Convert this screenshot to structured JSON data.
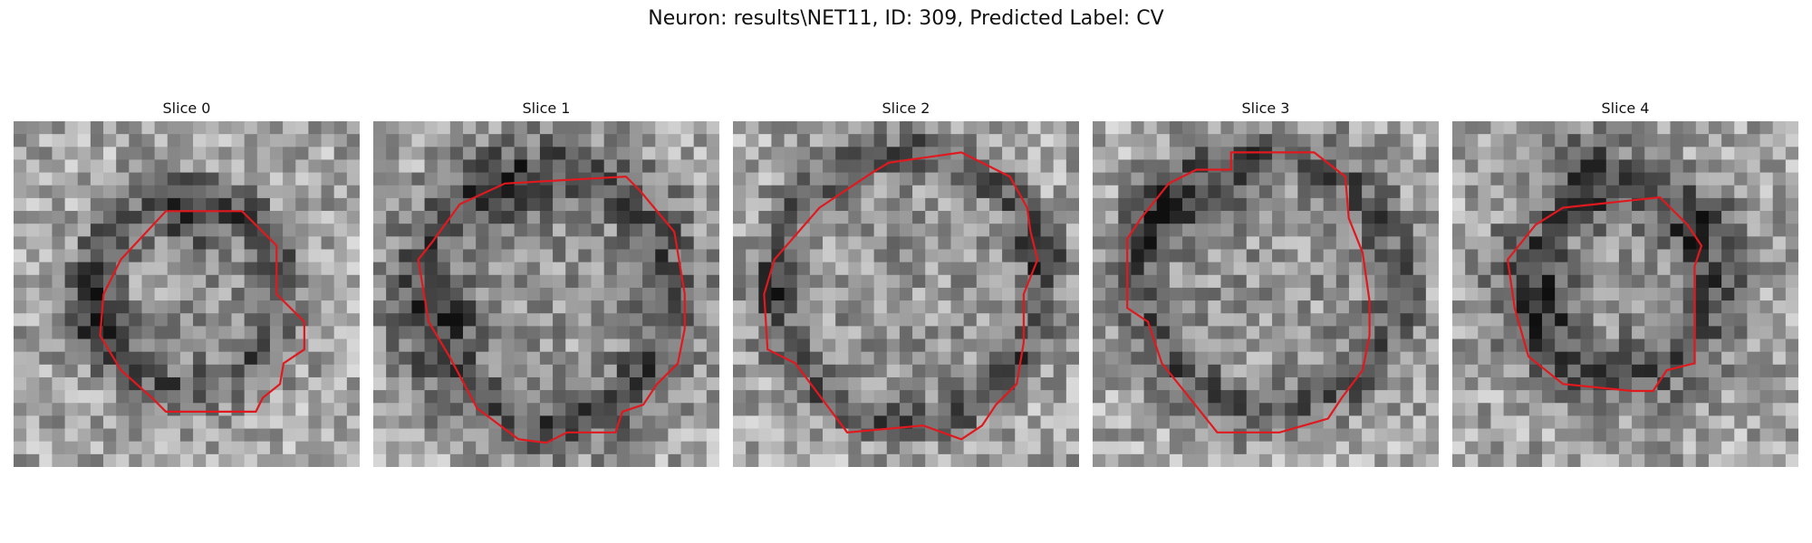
{
  "figure": {
    "title": "Neuron: results\\NET11, ID: 309, Predicted Label: CV",
    "contour_color": "#e0191f",
    "background_color": "#ffffff",
    "colormap": "grayscale"
  },
  "slices": [
    {
      "label": "Slice 0"
    },
    {
      "label": "Slice 1"
    },
    {
      "label": "Slice 2"
    },
    {
      "label": "Slice 3"
    },
    {
      "label": "Slice 4"
    }
  ]
}
